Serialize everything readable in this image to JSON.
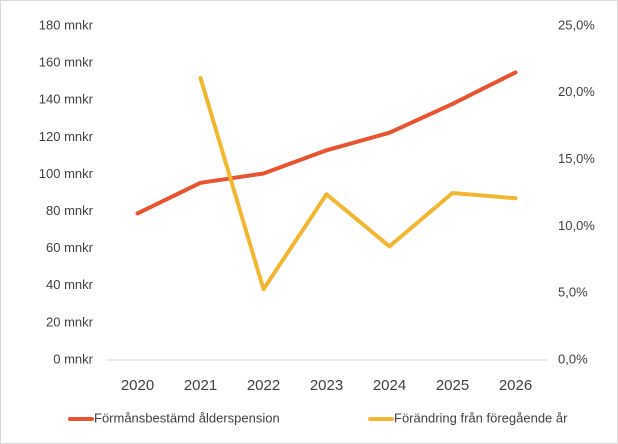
{
  "chart_data": {
    "type": "line",
    "categories": [
      "2020",
      "2021",
      "2022",
      "2023",
      "2024",
      "2025",
      "2026"
    ],
    "series": [
      {
        "name": "Förmånsbestämd ålderspension",
        "color": "#e8542f",
        "values": [
          79,
          95.5,
          100.5,
          113,
          122.5,
          138,
          155
        ]
      },
      {
        "name": "Förändring från föregående år",
        "color": "#f2b731",
        "axis": "y2",
        "values": [
          null,
          21.1,
          5.3,
          12.4,
          8.5,
          12.5,
          12.1
        ]
      }
    ],
    "ylim": [
      0,
      180
    ],
    "yticks": [
      {
        "value": 0,
        "label": "0 mnkr"
      },
      {
        "value": 20,
        "label": "20 mnkr"
      },
      {
        "value": 40,
        "label": "40 mnkr"
      },
      {
        "value": 60,
        "label": "60 mnkr"
      },
      {
        "value": 80,
        "label": "80 mnkr"
      },
      {
        "value": 100,
        "label": "100 mnkr"
      },
      {
        "value": 120,
        "label": "120 mnkr"
      },
      {
        "value": 140,
        "label": "140 mnkr"
      },
      {
        "value": 160,
        "label": "160 mnkr"
      },
      {
        "value": 180,
        "label": "180 mnkr"
      }
    ],
    "y2lim": [
      0,
      25
    ],
    "y2ticks": [
      {
        "value": 0,
        "label": "0,0%"
      },
      {
        "value": 5,
        "label": "5,0%"
      },
      {
        "value": 10,
        "label": "10,0%"
      },
      {
        "value": 15,
        "label": "15,0%"
      },
      {
        "value": 20,
        "label": "20,0%"
      },
      {
        "value": 25,
        "label": "25,0%"
      }
    ],
    "grid": false,
    "legend": "bottom"
  }
}
